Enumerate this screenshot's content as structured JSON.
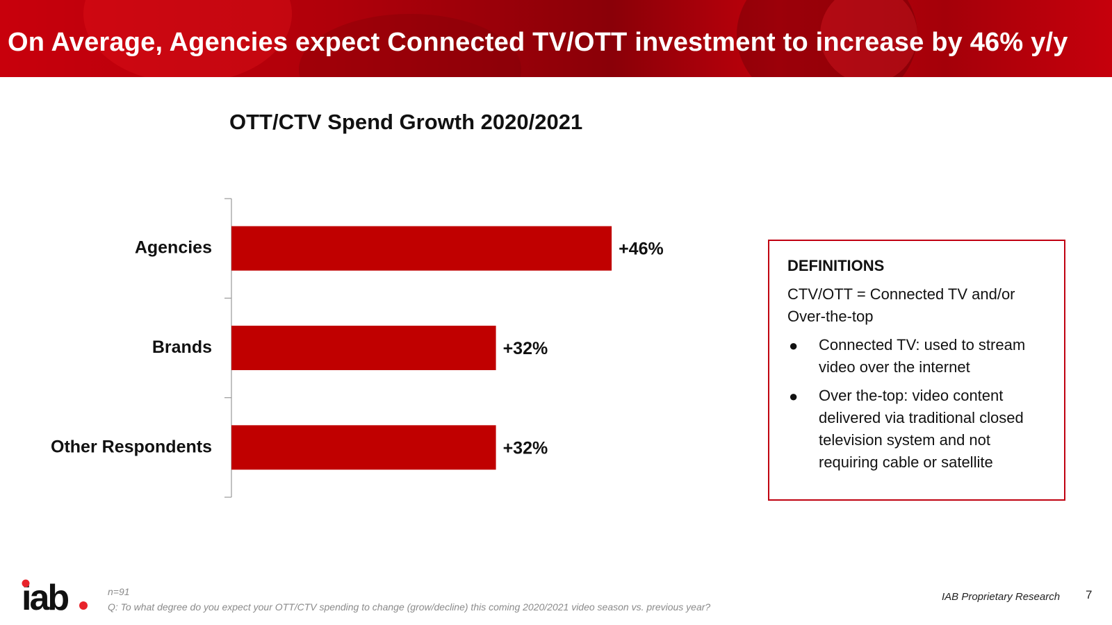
{
  "header": {
    "title": "On Average, Agencies expect Connected TV/OTT investment to increase by 46% y/y"
  },
  "colors": {
    "accent": "#c00010",
    "bar": "#c00000",
    "banner": "#b0000a"
  },
  "chart_data": {
    "type": "bar",
    "orientation": "horizontal",
    "title": "OTT/CTV Spend Growth 2020/2021",
    "categories": [
      "Agencies",
      "Brands",
      "Other Respondents"
    ],
    "values": [
      46,
      32,
      32
    ],
    "value_labels": [
      "+46%",
      "+32%",
      "+32%"
    ],
    "xlim": [
      0,
      56
    ],
    "xlabel": "",
    "ylabel": "",
    "grid": false
  },
  "definitions": {
    "title": "DEFINITIONS",
    "intro": "CTV/OTT = Connected TV and/or Over-the-top",
    "bullets": [
      "Connected TV: used to stream video over the internet",
      "Over the-top: video content delivered via traditional closed television system and not requiring cable or satellite"
    ]
  },
  "footer": {
    "logo_text": "iab.",
    "n_label": "n=91",
    "question": "Q: To what degree do you expect your OTT/CTV spending to change (grow/decline) this coming 2020/2021 video season vs. previous year?",
    "research_label": "IAB Proprietary Research",
    "page_number": "7"
  }
}
